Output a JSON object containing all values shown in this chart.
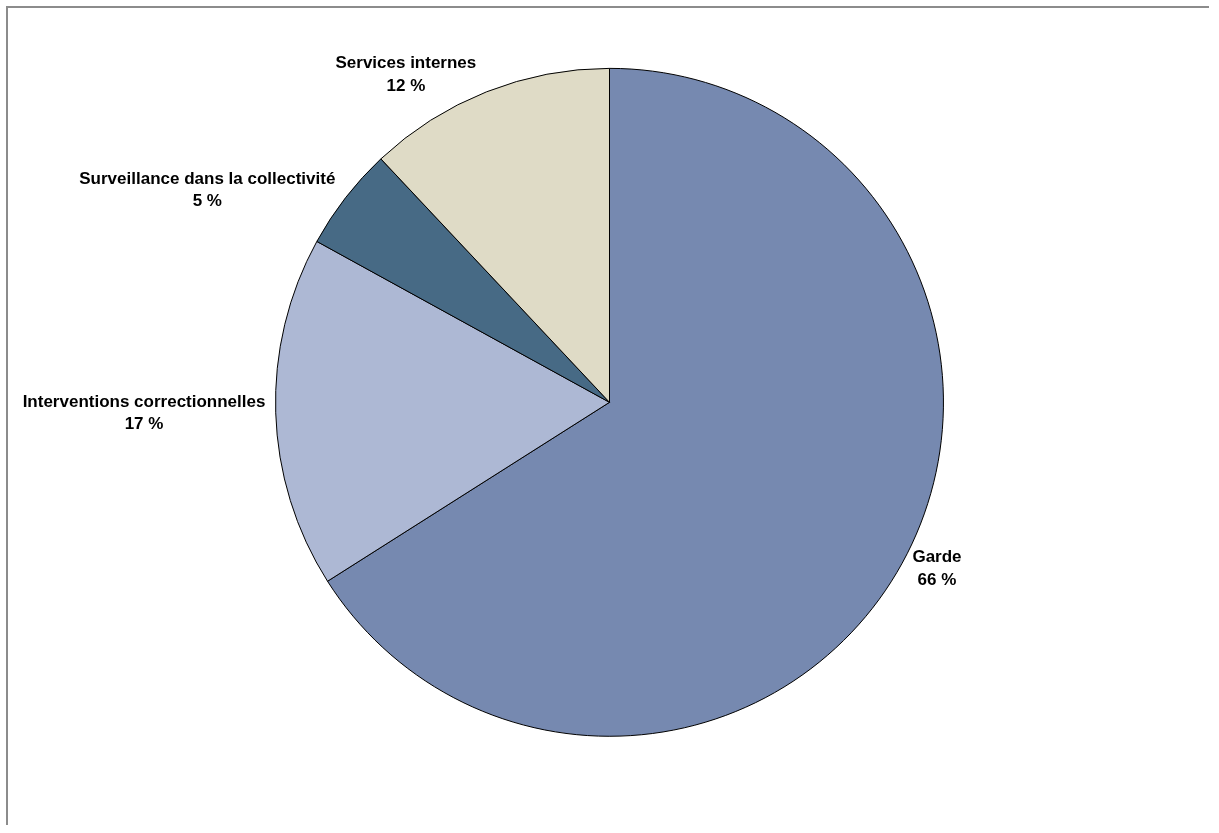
{
  "chart_data": {
    "type": "pie",
    "categories": [
      "Garde",
      "Interventions correctionnelles",
      "Surveillance dans la collectivité",
      "Services internes"
    ],
    "values": [
      66,
      17,
      5,
      12
    ],
    "colors": [
      "#7689b0",
      "#adb8d4",
      "#476a85",
      "#dfdbc6"
    ],
    "value_labels": [
      "66 %",
      "17 %",
      "5 %",
      "12 %"
    ],
    "legend": false
  }
}
